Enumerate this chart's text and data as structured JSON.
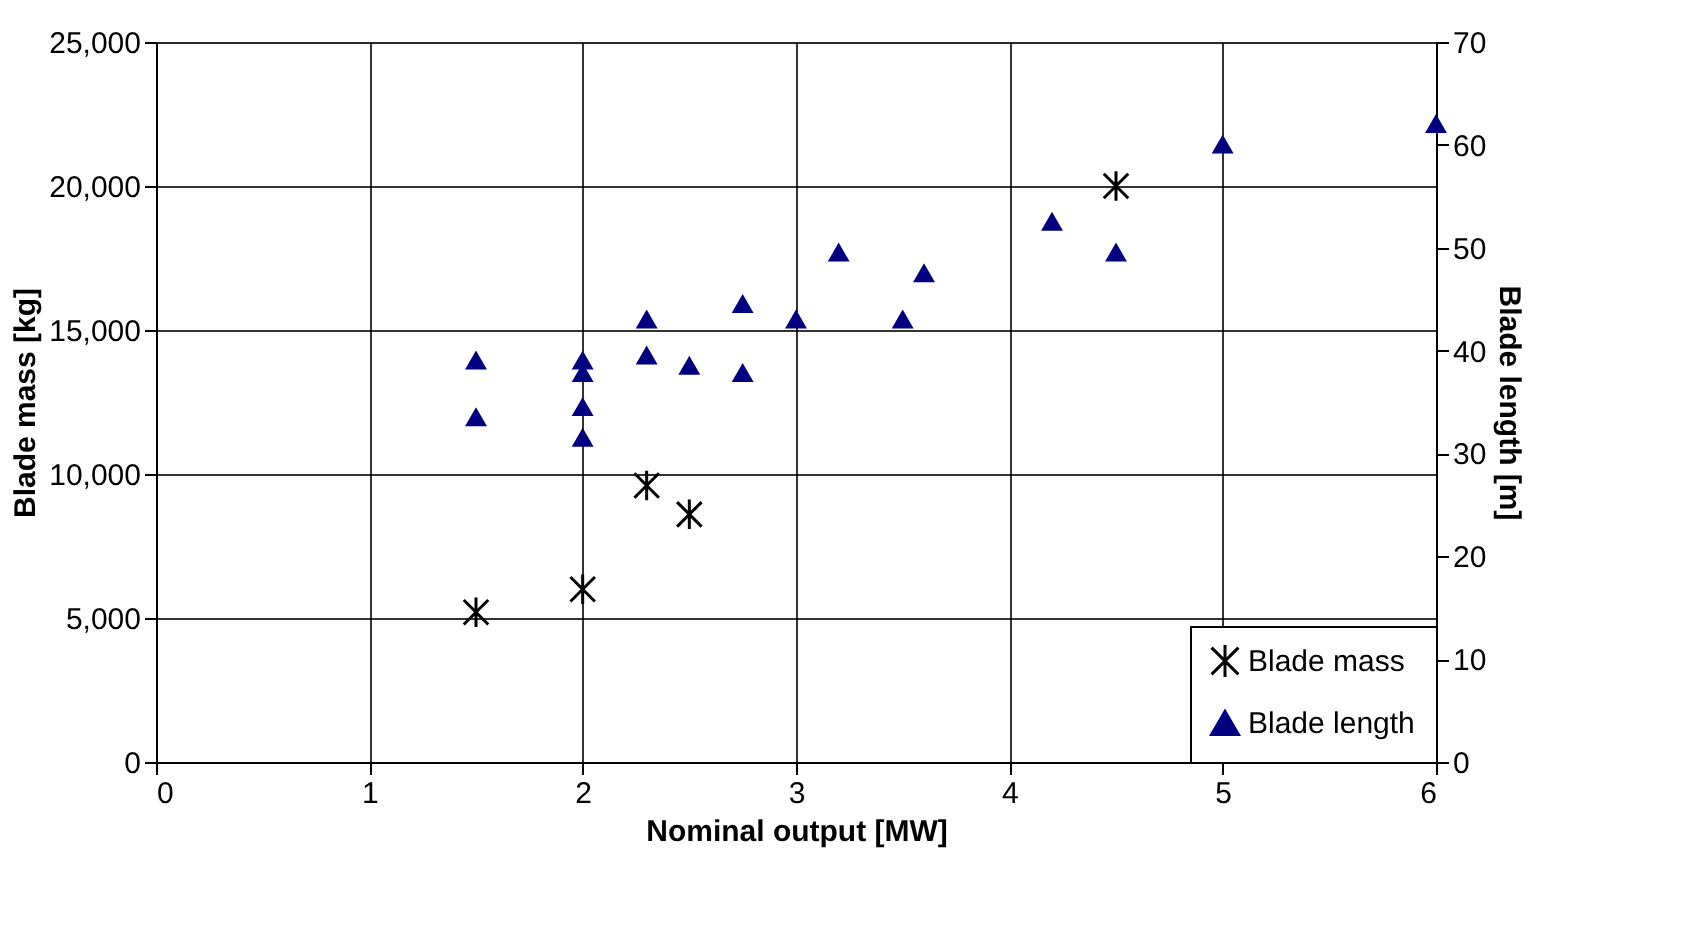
{
  "chart_data": {
    "type": "scatter",
    "xlabel": "Nominal output [MW]",
    "ylabel": "Blade mass [kg]",
    "y2label": "Blade length [m]",
    "xlim": [
      0,
      6
    ],
    "xticks": [
      0,
      1,
      2,
      3,
      4,
      5,
      6
    ],
    "ylim": [
      0,
      25000
    ],
    "yticks": [
      0,
      {
        "value": 5000,
        "label": "5,000"
      },
      {
        "value": 10000,
        "label": "10,000"
      },
      {
        "value": 15000,
        "label": "15,000"
      },
      {
        "value": 20000,
        "label": "20,000"
      },
      {
        "value": 25000,
        "label": "25,000"
      }
    ],
    "y2lim": [
      0,
      70
    ],
    "y2ticks": [
      0,
      10,
      20,
      30,
      40,
      50,
      60,
      70
    ],
    "grid": true,
    "legend": "bottom right",
    "series": [
      {
        "name": "Blade mass",
        "color": "#000000",
        "marker": "cross",
        "axis": "y",
        "x": [
          1.5,
          2,
          2.3,
          2.5,
          4.5
        ],
        "values": [
          5200,
          6000,
          9600,
          8600,
          20000
        ]
      },
      {
        "name": "Blade length",
        "color": "#000080",
        "marker": "triangle",
        "axis": "y2",
        "x": [
          1.5,
          1.5,
          2,
          2,
          2,
          2,
          2.3,
          2.3,
          2.5,
          2.75,
          2.75,
          3,
          3.2,
          3.5,
          3.6,
          4.2,
          4.5,
          5,
          6
        ],
        "values": [
          39,
          33.5,
          39,
          37.8,
          34.5,
          31.5,
          43,
          39.5,
          38.5,
          44.5,
          37.8,
          43,
          49.5,
          43,
          47.5,
          52.5,
          49.5,
          60,
          62
        ]
      }
    ]
  }
}
